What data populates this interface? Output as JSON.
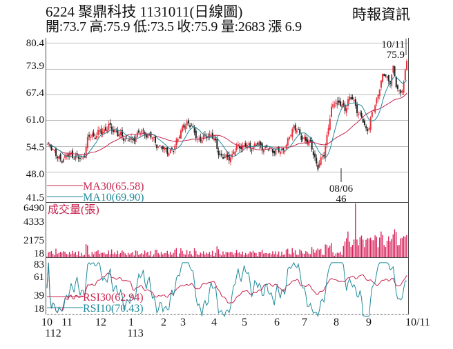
{
  "header": {
    "title": "6224  聚鼎科技 1131011(日線圖)",
    "quote": "開:73.7 高:75.9 低:73.5 收:75.9 量:2683 漲 6.9",
    "source": "時報資訊"
  },
  "colors": {
    "up": "#e8313c",
    "down": "#222222",
    "ma30": "#c8244f",
    "ma10": "#1f8a9a",
    "rsi30": "#c8244f",
    "rsi10": "#1f8a9a",
    "volume": "#d8245c",
    "grid": "#bbbbbb",
    "axis": "#444444"
  },
  "chart_data": [
    {
      "type": "candlestick",
      "title": "6224 聚鼎科技 1131011(日線圖)",
      "ylabel": "",
      "yticks": [
        80.4,
        73.9,
        67.4,
        61.0,
        54.5,
        48.0,
        41.5
      ],
      "ylim": [
        41.5,
        80.4
      ],
      "grid": true,
      "annotations": [
        {
          "label": "10/11",
          "value": "75.9",
          "type": "high"
        },
        {
          "label": "08/06",
          "value": "46",
          "type": "low"
        }
      ],
      "legend": [
        {
          "name": "MA30",
          "value": "MA30(65.58)"
        },
        {
          "name": "MA10",
          "value": "MA10(69.90)"
        }
      ],
      "close_approx": [
        54.5,
        54.8,
        53.5,
        51.5,
        51,
        51.8,
        52,
        52.5,
        52,
        51.6,
        51.2,
        52.6,
        56.5,
        57.2,
        57,
        57.8,
        58,
        58.8,
        59.4,
        58.5,
        58.4,
        57.3,
        56.8,
        56.2,
        56.4,
        55.5,
        57.5,
        58,
        57.8,
        57.5,
        57.2,
        56.2,
        55,
        54.2,
        53.8,
        53.4,
        53.2,
        53.4,
        56.5,
        58,
        59.2,
        60.5,
        60,
        57.6,
        56.2,
        56.4,
        56.5,
        57.2,
        57.6,
        55.5,
        53,
        52,
        51.5,
        51.6,
        52.2,
        53.5,
        54.6,
        54.5,
        54.6,
        54.3,
        54.3,
        54.8,
        55.0,
        54.2,
        53.8,
        53.9,
        53.5,
        53.3,
        53.2,
        53.8,
        54.8,
        57.2,
        59.6,
        58.6,
        56.5,
        56.8,
        55.6,
        54.8,
        52.2,
        49,
        50.8,
        53.2,
        58.5,
        63.5,
        65.8,
        65.5,
        64.5,
        63.8,
        66.4,
        66.4,
        64.9,
        62.6,
        61.3,
        58.6,
        59.5,
        62.8,
        65.3,
        69.2,
        71.8,
        72.5,
        70.2,
        73.9,
        69.5,
        68.0,
        69.0,
        75.9
      ],
      "ma10_final": 69.9,
      "ma30_final": 65.58
    },
    {
      "type": "bar",
      "title": "成交量(張)",
      "yticks": [
        6490,
        4333,
        2175,
        18
      ],
      "ylim": [
        18,
        6490
      ],
      "peak": {
        "value": 6490,
        "position": "mid-August"
      }
    },
    {
      "type": "line",
      "title": "RSI",
      "yticks": [
        83,
        61,
        39,
        18
      ],
      "ylim": [
        18,
        83
      ],
      "legend": [
        {
          "name": "RSI30",
          "value": "RSI30(62.94)"
        },
        {
          "name": "RSI10",
          "value": "RSI10(70.43)"
        }
      ]
    }
  ],
  "price_panel": {
    "yticks": [
      "80.4",
      "73.9",
      "67.4",
      "61.0",
      "54.5",
      "48.0",
      "41.5"
    ],
    "high_label": {
      "date": "10/11",
      "value": "75.9"
    },
    "low_label": {
      "date": "08/06",
      "value": "46"
    },
    "legend_ma30": "MA30(65.58)",
    "legend_ma10": "MA10(69.90)"
  },
  "volume_panel": {
    "title": "成交量(張)",
    "yticks": [
      "6490",
      "4333",
      "2175",
      "18"
    ]
  },
  "rsi_panel": {
    "yticks": [
      "83",
      "61",
      "39",
      "18"
    ],
    "legend_rsi30": "RSI30(62.94)",
    "legend_rsi10": "RSI10(70.43)"
  },
  "x_axis": {
    "months": [
      "10",
      "11",
      "12",
      "1",
      "2",
      "3",
      "4",
      "5",
      "6",
      "7",
      "8",
      "9",
      "10/11"
    ],
    "years": [
      "112",
      "113"
    ]
  }
}
